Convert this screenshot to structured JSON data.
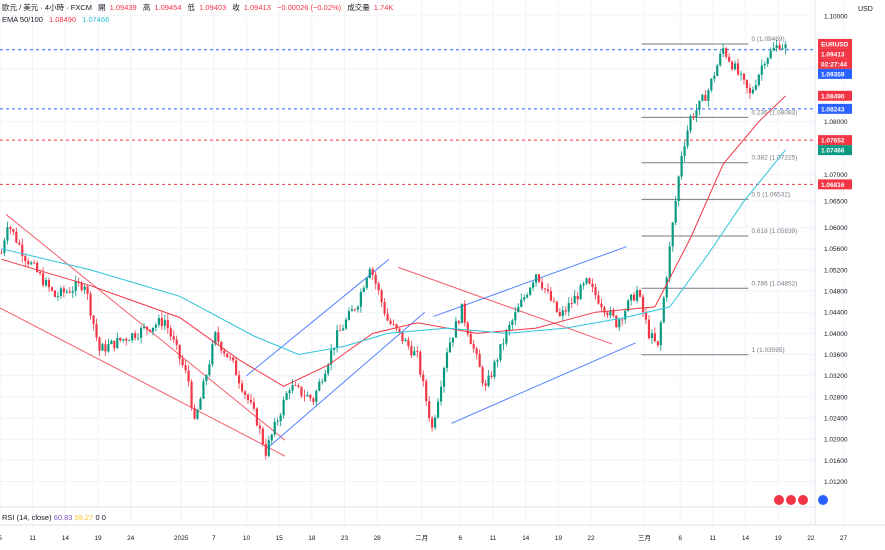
{
  "header": {
    "title": "歐元 / 美元 · 4小時 · FXCM",
    "open_label": "開",
    "open": "1.09439",
    "high_label": "高",
    "high": "1.09454",
    "low_label": "低",
    "low": "1.09403",
    "close_label": "收",
    "close": "1.09413",
    "change": "−0.00026 (−0.02%)",
    "volume_label": "成交量",
    "volume": "1.74K",
    "ema_label": "EMA 50/100",
    "ema50": "1.08490",
    "ema100": "1.07466"
  },
  "rsi": {
    "label": "RSI (14, close)",
    "value1": "60.83",
    "value2": "59.27",
    "extra": "0 0"
  },
  "currency": "USD",
  "colors": {
    "up": "#089981",
    "down": "#f23645",
    "ema50": "#f23645",
    "ema100": "#2ec5d8",
    "channel_red": "#f23645",
    "channel_blue": "#2962ff",
    "fib": "#787b86"
  },
  "chart_data": {
    "type": "line",
    "title": "歐元 / 美元 · 4小時 · FXCM",
    "ylim": [
      1.0087,
      1.1013
    ],
    "y_ticks": [
      "1.10000",
      "1.09000",
      "1.08000",
      "1.07000",
      "1.06500",
      "1.06000",
      "1.05600",
      "1.05200",
      "1.04800",
      "1.04400",
      "1.04000",
      "1.03600",
      "1.03200",
      "1.02800",
      "1.02400",
      "1.02000",
      "1.01600",
      "1.01200"
    ],
    "x_ticks": [
      {
        "label": "5",
        "i": 0
      },
      {
        "label": "11",
        "i": 11
      },
      {
        "label": "14",
        "i": 22
      },
      {
        "label": "19",
        "i": 33
      },
      {
        "label": "24",
        "i": 44
      },
      {
        "label": "2025",
        "i": 61
      },
      {
        "label": "7",
        "i": 72
      },
      {
        "label": "10",
        "i": 83
      },
      {
        "label": "15",
        "i": 94
      },
      {
        "label": "18",
        "i": 105
      },
      {
        "label": "23",
        "i": 116
      },
      {
        "label": "28",
        "i": 127
      },
      {
        "label": "二月",
        "i": 142
      },
      {
        "label": "6",
        "i": 155
      },
      {
        "label": "11",
        "i": 166
      },
      {
        "label": "14",
        "i": 177
      },
      {
        "label": "19",
        "i": 188
      },
      {
        "label": "22",
        "i": 199
      },
      {
        "label": "三月",
        "i": 217
      },
      {
        "label": "6",
        "i": 229
      },
      {
        "label": "11",
        "i": 240
      },
      {
        "label": "14",
        "i": 251
      },
      {
        "label": "19",
        "i": 262
      },
      {
        "label": "22",
        "i": 273
      },
      {
        "label": "27",
        "i": 284
      }
    ],
    "key_points": [
      {
        "i": 0,
        "price": 1.0552
      },
      {
        "i": 2,
        "price": 1.061
      },
      {
        "i": 8,
        "price": 1.0545
      },
      {
        "i": 18,
        "price": 1.047
      },
      {
        "i": 28,
        "price": 1.0495
      },
      {
        "i": 33,
        "price": 1.0368
      },
      {
        "i": 43,
        "price": 1.0395
      },
      {
        "i": 55,
        "price": 1.0425
      },
      {
        "i": 63,
        "price": 1.031
      },
      {
        "i": 65,
        "price": 1.0228
      },
      {
        "i": 72,
        "price": 1.0395
      },
      {
        "i": 78,
        "price": 1.034
      },
      {
        "i": 86,
        "price": 1.0235
      },
      {
        "i": 89,
        "price": 1.0176
      },
      {
        "i": 97,
        "price": 1.03
      },
      {
        "i": 105,
        "price": 1.0275
      },
      {
        "i": 113,
        "price": 1.0395
      },
      {
        "i": 120,
        "price": 1.046
      },
      {
        "i": 124,
        "price": 1.053
      },
      {
        "i": 130,
        "price": 1.0425
      },
      {
        "i": 140,
        "price": 1.0355
      },
      {
        "i": 145,
        "price": 1.022
      },
      {
        "i": 150,
        "price": 1.037
      },
      {
        "i": 155,
        "price": 1.0445
      },
      {
        "i": 163,
        "price": 1.0295
      },
      {
        "i": 170,
        "price": 1.04
      },
      {
        "i": 180,
        "price": 1.0515
      },
      {
        "i": 188,
        "price": 1.043
      },
      {
        "i": 197,
        "price": 1.0495
      },
      {
        "i": 207,
        "price": 1.042
      },
      {
        "i": 214,
        "price": 1.048
      },
      {
        "i": 218,
        "price": 1.04
      },
      {
        "i": 221,
        "price": 1.0372
      },
      {
        "i": 225,
        "price": 1.056
      },
      {
        "i": 229,
        "price": 1.074
      },
      {
        "i": 232,
        "price": 1.0808
      },
      {
        "i": 235,
        "price": 1.083
      },
      {
        "i": 238,
        "price": 1.086
      },
      {
        "i": 243,
        "price": 1.0938
      },
      {
        "i": 247,
        "price": 1.09
      },
      {
        "i": 252,
        "price": 1.085
      },
      {
        "i": 257,
        "price": 1.092
      },
      {
        "i": 262,
        "price": 1.0947
      },
      {
        "i": 264,
        "price": 1.0941
      }
    ],
    "ema50": [
      {
        "i": 0,
        "price": 1.054
      },
      {
        "i": 30,
        "price": 1.049
      },
      {
        "i": 60,
        "price": 1.043
      },
      {
        "i": 80,
        "price": 1.035
      },
      {
        "i": 95,
        "price": 1.03
      },
      {
        "i": 110,
        "price": 1.034
      },
      {
        "i": 125,
        "price": 1.04
      },
      {
        "i": 140,
        "price": 1.042
      },
      {
        "i": 160,
        "price": 1.04
      },
      {
        "i": 180,
        "price": 1.041
      },
      {
        "i": 200,
        "price": 1.044
      },
      {
        "i": 220,
        "price": 1.045
      },
      {
        "i": 232,
        "price": 1.058
      },
      {
        "i": 243,
        "price": 1.072
      },
      {
        "i": 255,
        "price": 1.08
      },
      {
        "i": 264,
        "price": 1.0849
      }
    ],
    "ema100": [
      {
        "i": 0,
        "price": 1.056
      },
      {
        "i": 30,
        "price": 1.052
      },
      {
        "i": 60,
        "price": 1.047
      },
      {
        "i": 85,
        "price": 1.0395
      },
      {
        "i": 100,
        "price": 1.036
      },
      {
        "i": 115,
        "price": 1.0375
      },
      {
        "i": 130,
        "price": 1.04
      },
      {
        "i": 150,
        "price": 1.041
      },
      {
        "i": 170,
        "price": 1.04
      },
      {
        "i": 190,
        "price": 1.041
      },
      {
        "i": 210,
        "price": 1.043
      },
      {
        "i": 225,
        "price": 1.045
      },
      {
        "i": 238,
        "price": 1.055
      },
      {
        "i": 250,
        "price": 1.065
      },
      {
        "i": 264,
        "price": 1.0747
      }
    ],
    "price_badges": [
      {
        "price": 1.0947,
        "text": "EURUSD",
        "color": "#f23645"
      },
      {
        "price": 1.0935,
        "text": "1.09413",
        "color": "#f23645"
      },
      {
        "price": 1.0925,
        "text": "02:27:44",
        "color": "#f23645"
      },
      {
        "price": 1.09359,
        "text": "1.09359",
        "color": "#2962ff"
      },
      {
        "price": 1.0849,
        "text": "1.08490",
        "color": "#f23645"
      },
      {
        "price": 1.08243,
        "text": "1.08243",
        "color": "#2962ff"
      },
      {
        "price": 1.07652,
        "text": "1.07652",
        "color": "#f23645"
      },
      {
        "price": 1.07466,
        "text": "1.07466",
        "color": "#089981"
      },
      {
        "price": 1.06816,
        "text": "1.06816",
        "color": "#f23645"
      }
    ],
    "h_lines": [
      {
        "price": 1.09359,
        "color": "#2962ff"
      },
      {
        "price": 1.08243,
        "color": "#2962ff"
      },
      {
        "price": 1.07652,
        "color": "#f23645"
      },
      {
        "price": 1.06816,
        "color": "#f23645"
      }
    ],
    "fib_levels": [
      {
        "label": "0 (1.09469)",
        "price": 1.09469
      },
      {
        "label": "0.236 (1.08083)",
        "price": 1.08083
      },
      {
        "label": "0.382 (1.07225)",
        "price": 1.07225
      },
      {
        "label": "0.5 (1.06532)",
        "price": 1.06532
      },
      {
        "label": "0.618 (1.05839)",
        "price": 1.05839
      },
      {
        "label": "0.786 (1.04852)",
        "price": 1.04852
      },
      {
        "label": "1 (1.03595)",
        "price": 1.03595
      }
    ],
    "channels": [
      {
        "color": "#f23645",
        "lines": [
          [
            2,
            1.0625,
            96,
            1.0198
          ],
          [
            0,
            1.0448,
            96,
            1.0168
          ]
        ]
      },
      {
        "color": "#2962ff",
        "lines": [
          [
            83,
            1.032,
            131,
            1.054
          ],
          [
            90,
            1.0183,
            143,
            1.044
          ]
        ]
      },
      {
        "color": "#f23645",
        "lines": [
          [
            134,
            1.0525,
            206,
            1.038
          ]
        ]
      },
      {
        "color": "#2962ff",
        "lines": [
          [
            152,
            1.023,
            214,
            1.0382
          ],
          [
            146,
            1.0432,
            211,
            1.0564
          ]
        ]
      }
    ]
  }
}
